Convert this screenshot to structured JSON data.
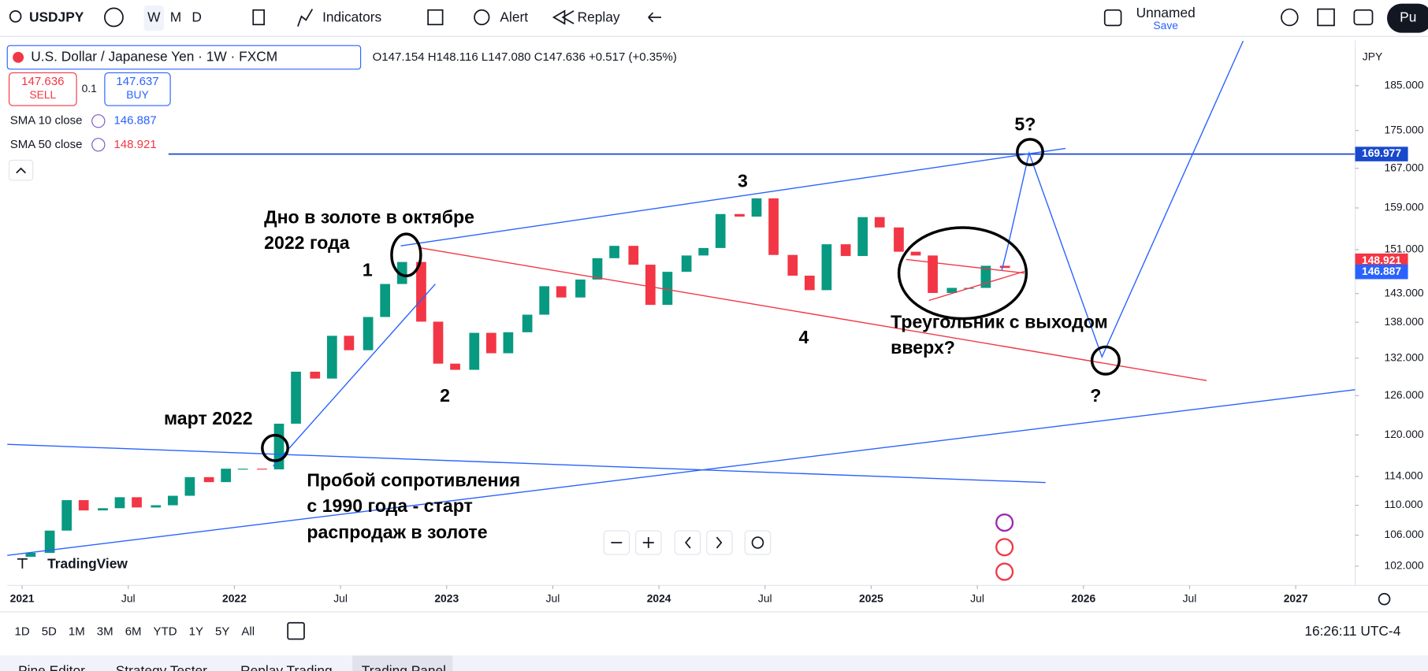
{
  "toolbar": {
    "symbol": "USDJPY",
    "intervals": [
      "W",
      "M",
      "D"
    ],
    "indicators": "Indicators",
    "alert": "Alert",
    "replay": "Replay",
    "layout_name": "Unnamed",
    "save": "Save",
    "publish": "Pu"
  },
  "legend": {
    "title": "U.S. Dollar / Japanese Yen · 1W · FXCM",
    "ohlc": "O147.154 H148.116 L147.080 C147.636 +0.517 (+0.35%)",
    "sell_price": "147.636",
    "sell": "SELL",
    "spread": "0.1",
    "buy_price": "147.637",
    "buy": "BUY",
    "indicators": [
      {
        "name": "SMA 10 close",
        "value": "146.887"
      },
      {
        "name": "SMA 50 close",
        "value": "148.921"
      }
    ]
  },
  "chart_data": {
    "type": "candlestick",
    "currency": "JPY",
    "up_color": "#089981",
    "down_color": "#f23645",
    "log": true,
    "grid": false,
    "x": [
      2021.04,
      2021.13,
      2021.21,
      2021.29,
      2021.38,
      2021.46,
      2021.54,
      2021.63,
      2021.71,
      2021.79,
      2021.88,
      2021.96,
      2022.04,
      2022.13,
      2022.21,
      2022.29,
      2022.38,
      2022.46,
      2022.54,
      2022.63,
      2022.71,
      2022.79,
      2022.88,
      2022.96,
      2023.04,
      2023.13,
      2023.21,
      2023.29,
      2023.38,
      2023.46,
      2023.54,
      2023.63,
      2023.71,
      2023.79,
      2023.88,
      2023.96,
      2024.04,
      2024.13,
      2024.21,
      2024.29,
      2024.38,
      2024.46,
      2024.54,
      2024.63,
      2024.71,
      2024.79,
      2024.88,
      2024.96,
      2025.04,
      2025.13,
      2025.21,
      2025.29,
      2025.38,
      2025.46,
      2025.54,
      2025.63
    ],
    "open": [
      103.2,
      103.7,
      106.6,
      110.7,
      109.3,
      109.6,
      111.1,
      109.7,
      110.0,
      111.3,
      113.9,
      113.2,
      115.1,
      115.1,
      115.0,
      121.7,
      129.8,
      128.7,
      135.7,
      133.3,
      138.9,
      144.7,
      148.7,
      138.1,
      131.1,
      130.1,
      136.2,
      132.8,
      136.3,
      139.3,
      144.3,
      142.3,
      145.5,
      149.4,
      151.7,
      148.2,
      141.0,
      146.9,
      149.9,
      151.3,
      157.8,
      157.3,
      160.9,
      150.0,
      146.2,
      143.6,
      152.0,
      149.8,
      157.2,
      155.2,
      150.6,
      149.9,
      143.1,
      144.0,
      144.0,
      148.0
    ],
    "close": [
      103.7,
      106.6,
      110.7,
      109.3,
      109.6,
      111.1,
      109.7,
      110.0,
      111.3,
      113.9,
      113.2,
      115.1,
      115.1,
      115.0,
      121.7,
      129.8,
      128.7,
      135.7,
      133.3,
      138.9,
      144.7,
      148.7,
      138.1,
      131.1,
      130.1,
      136.2,
      132.8,
      136.3,
      139.3,
      144.3,
      142.3,
      145.5,
      149.4,
      151.7,
      148.2,
      141.0,
      146.9,
      149.9,
      151.3,
      157.8,
      157.3,
      160.9,
      150.0,
      146.2,
      143.6,
      152.0,
      149.8,
      157.2,
      155.2,
      150.6,
      149.9,
      143.1,
      144.0,
      144.0,
      148.0,
      147.6
    ],
    "xlim": [
      2020.93,
      2027.28
    ],
    "xticks": [
      2021,
      {
        "value": 2021.5,
        "label": "Jul"
      },
      2022,
      {
        "value": 2022.5,
        "label": "Jul"
      },
      2023,
      {
        "value": 2023.5,
        "label": "Jul"
      },
      2024,
      {
        "value": 2024.5,
        "label": "Jul"
      },
      2025,
      {
        "value": 2025.5,
        "label": "Jul"
      },
      2026,
      {
        "value": 2026.5,
        "label": "Jul"
      },
      2027
    ],
    "ylim": [
      99.6,
      195.1
    ],
    "yticks": [
      {
        "value": 102,
        "label": "102.000"
      },
      {
        "value": 106,
        "label": "106.000"
      },
      {
        "value": 110,
        "label": "110.000"
      },
      {
        "value": 114,
        "label": "114.000"
      },
      {
        "value": 120,
        "label": "120.000"
      },
      {
        "value": 126,
        "label": "126.000"
      },
      {
        "value": 132,
        "label": "132.000"
      },
      {
        "value": 138,
        "label": "138.000"
      },
      {
        "value": 143,
        "label": "143.000"
      },
      {
        "value": 151,
        "label": "151.000"
      },
      {
        "value": 159,
        "label": "159.000"
      },
      {
        "value": 167,
        "label": "167.000"
      },
      {
        "value": 175,
        "label": "175.000"
      },
      {
        "value": 185,
        "label": "185.000"
      }
    ],
    "price_lines": [
      {
        "value": 169.977,
        "color": "#1848cc"
      },
      {
        "value": 148.921,
        "color": "#f23645"
      },
      {
        "value": 146.887,
        "color": "#2962ff"
      }
    ]
  },
  "annotations": [
    "Дно в золоте в октябре",
    "2022 года",
    "1",
    "2",
    "3",
    "4",
    "5?",
    "?",
    "март 2022",
    "Пробой сопротивления",
    "с 1990 года - старт",
    "распродаж в золоте",
    "Треугольник с выходом",
    "вверх?"
  ],
  "watermark": "TradingView",
  "range_buttons": [
    "1D",
    "5D",
    "1M",
    "3M",
    "6M",
    "YTD",
    "1Y",
    "5Y",
    "All"
  ],
  "clock": "16:26:11 UTC-4",
  "bottom_tabs": [
    "Pine Editor",
    "Strategy Tester",
    "Replay Trading",
    "Trading Panel"
  ]
}
